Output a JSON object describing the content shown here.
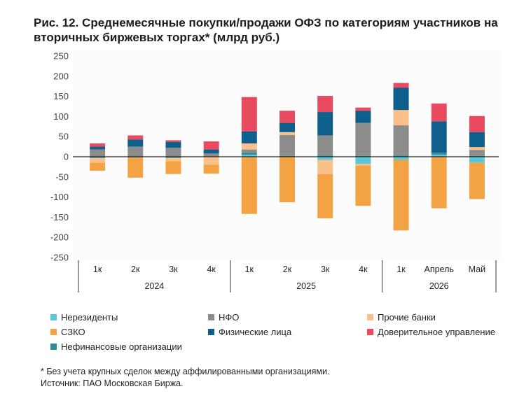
{
  "title": "Рис. 12. Среднемесячные покупки/продажи ОФЗ по категориям участников на вторичных биржевых торгах* (млрд руб.)",
  "footnote": "* Без учета крупных сделок между аффилированными организациями.",
  "source": "Источник: ПАО Московская Биржа.",
  "chart_data": {
    "type": "bar",
    "stacked": true,
    "ylim": [
      -250,
      250
    ],
    "yticks": [
      250,
      200,
      150,
      100,
      50,
      0,
      -50,
      -100,
      -150,
      -200,
      -250
    ],
    "categories": [
      "1к",
      "2к",
      "3к",
      "4к",
      "1к",
      "2к",
      "3к",
      "4к",
      "1к",
      "Апрель",
      "Май"
    ],
    "groups": [
      {
        "label": "2024",
        "categories": [
          "1к",
          "2к",
          "3к",
          "4к"
        ]
      },
      {
        "label": "2025",
        "categories": [
          "1к",
          "2к",
          "3к",
          "4к"
        ]
      },
      {
        "label": "2026",
        "categories": [
          "1к",
          "Апрель",
          "Май"
        ]
      }
    ],
    "series": [
      {
        "name": "Нерезиденты",
        "color": "#5bc8d8",
        "values": [
          0,
          0,
          0,
          0,
          5,
          0,
          -8,
          -18,
          -8,
          5,
          -15
        ]
      },
      {
        "name": "НФО",
        "color": "#8c8c8c",
        "values": [
          18,
          25,
          22,
          8,
          8,
          52,
          50,
          82,
          75,
          0,
          15
        ]
      },
      {
        "name": "Прочие банки",
        "color": "#f9c08a",
        "values": [
          -12,
          0,
          -8,
          -20,
          15,
          7,
          -35,
          -4,
          38,
          0,
          7
        ]
      },
      {
        "name": "СЗКО",
        "color": "#f4a344",
        "values": [
          -20,
          -50,
          -32,
          -22,
          -142,
          -113,
          -110,
          -100,
          -175,
          -128,
          -90
        ]
      },
      {
        "name": "Физические лица",
        "color": "#0f5f8c",
        "values": [
          7,
          18,
          15,
          10,
          30,
          23,
          58,
          30,
          55,
          78,
          37
        ]
      },
      {
        "name": "Доверительное управление",
        "color": "#e84a5f",
        "values": [
          8,
          10,
          4,
          20,
          85,
          30,
          40,
          8,
          12,
          44,
          40
        ]
      },
      {
        "name": "Нефинансовые организации",
        "color": "#2d8a98",
        "values": [
          -3,
          -2,
          -3,
          0,
          5,
          2,
          3,
          2,
          3,
          5,
          2
        ]
      }
    ],
    "legend_order": [
      "Нерезиденты",
      "НФО",
      "Прочие банки",
      "СЗКО",
      "Физические лица",
      "Доверительное управление",
      "Нефинансовые организации"
    ],
    "grid": false,
    "legend_position": "bottom"
  }
}
